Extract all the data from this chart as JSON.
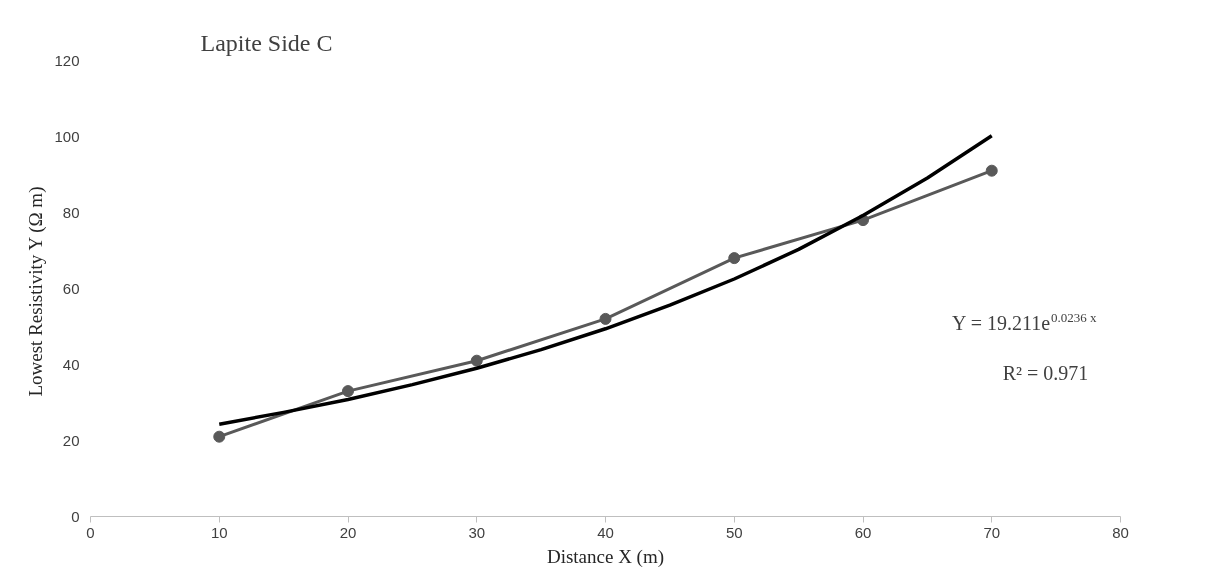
{
  "chart_data": {
    "type": "line",
    "title": "Lapite Side C",
    "xlabel": "Distance X (m)",
    "ylabel": "Lowest Resistivity  Y (Ω m)",
    "x": [
      10,
      20,
      30,
      40,
      50,
      60,
      70
    ],
    "series": [
      {
        "color": "#595959",
        "marker": "circle",
        "values": [
          21,
          33,
          41,
          52,
          68,
          78,
          91
        ]
      },
      {
        "color": "#000000",
        "marker": "none",
        "x": [
          10,
          15,
          20,
          25,
          30,
          35,
          40,
          45,
          50,
          55,
          60,
          65,
          70
        ],
        "values": [
          24.3,
          27.4,
          30.8,
          34.7,
          39.0,
          43.9,
          49.4,
          55.6,
          62.5,
          70.3,
          79.2,
          89.1,
          100.2
        ]
      }
    ],
    "xlim": [
      0,
      80
    ],
    "xticks": [
      0,
      10,
      20,
      30,
      40,
      50,
      60,
      70,
      80
    ],
    "ylim": [
      0,
      120
    ],
    "yticks": [
      0,
      20,
      40,
      60,
      80,
      100,
      120
    ],
    "annotations": [
      "Y = 19.211e$^{0.0236 x}$",
      "R² = 0.971"
    ],
    "grid": false,
    "line_style": "solid"
  }
}
